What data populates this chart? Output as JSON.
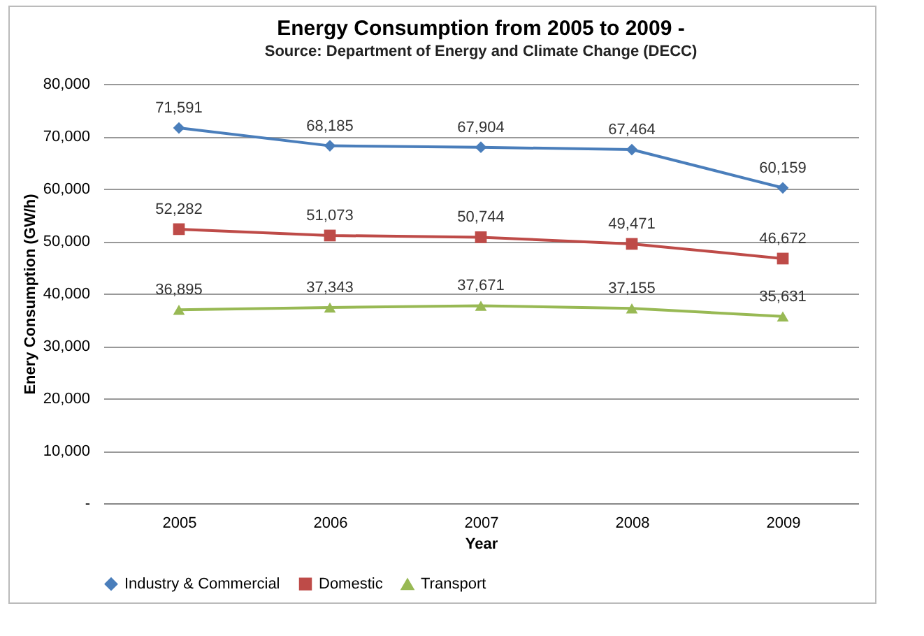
{
  "chart_data": {
    "type": "line",
    "title": "Energy Consumption from 2005 to 2009 -",
    "subtitle": "Source: Department of Energy and Climate Change (DECC)",
    "xlabel": "Year",
    "ylabel": "Enery Consumption (GW/h)",
    "categories": [
      "2005",
      "2006",
      "2007",
      "2008",
      "2009"
    ],
    "series": [
      {
        "name": "Industry & Commercial",
        "color": "#4a7ebb",
        "marker": "diamond",
        "values": [
          71591,
          68185,
          67904,
          67464,
          60159
        ],
        "value_labels": [
          "71,591",
          "68,185",
          "67,904",
          "67,464",
          "60,159"
        ]
      },
      {
        "name": "Domestic",
        "color": "#be4b48",
        "marker": "square",
        "values": [
          52282,
          51073,
          50744,
          49471,
          46672
        ],
        "value_labels": [
          "52,282",
          "51,073",
          "50,744",
          "49,471",
          "46,672"
        ]
      },
      {
        "name": "Transport",
        "color": "#98b954",
        "marker": "triangle",
        "values": [
          36895,
          37343,
          37671,
          37155,
          35631
        ],
        "value_labels": [
          "36,895",
          "37,343",
          "37,671",
          "37,155",
          "35,631"
        ]
      }
    ],
    "ylim": [
      0,
      80000
    ],
    "yticks": [
      {
        "value": 0,
        "label": "-"
      },
      {
        "value": 10000,
        "label": "10,000"
      },
      {
        "value": 20000,
        "label": "20,000"
      },
      {
        "value": 30000,
        "label": "30,000"
      },
      {
        "value": 40000,
        "label": "40,000"
      },
      {
        "value": 50000,
        "label": "50,000"
      },
      {
        "value": 60000,
        "label": "60,000"
      },
      {
        "value": 70000,
        "label": "70,000"
      },
      {
        "value": 80000,
        "label": "80,000"
      }
    ],
    "grid": "y",
    "legend": "bottom",
    "data_labels": true,
    "line_style": "solid"
  }
}
